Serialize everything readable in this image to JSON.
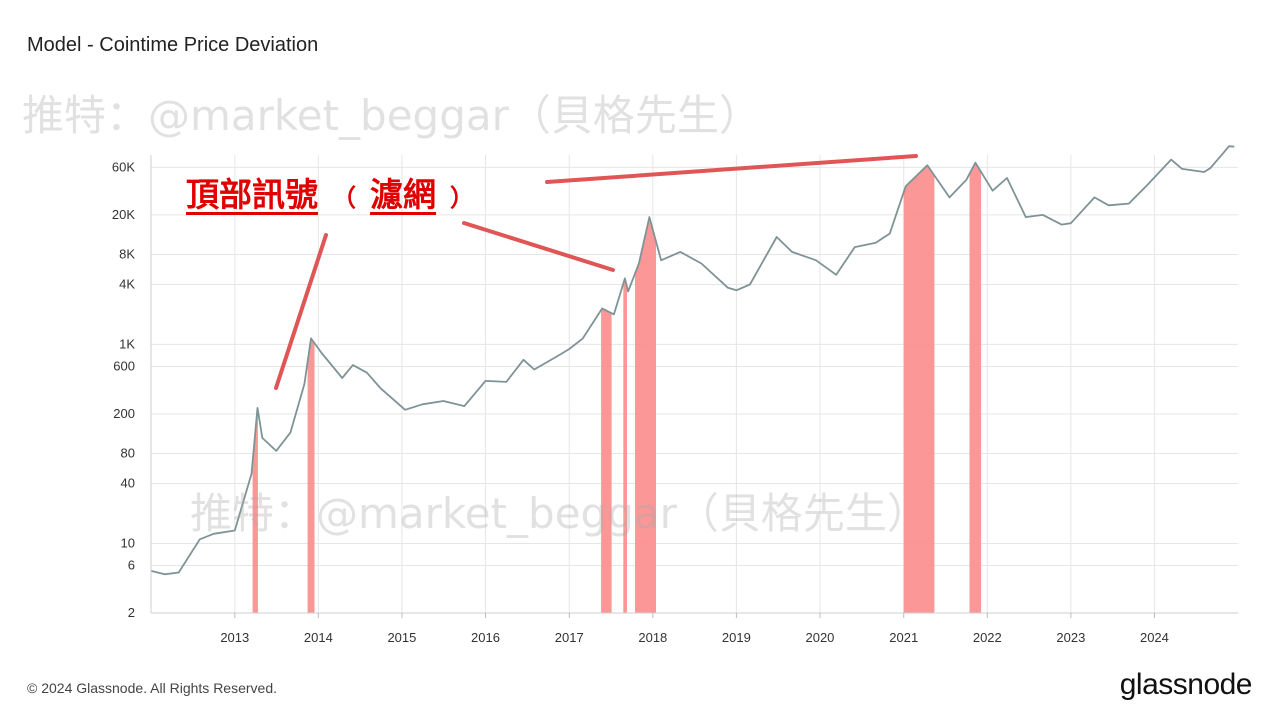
{
  "title": "Model - Cointime Price Deviation",
  "watermark": "推特：@market_beggar（貝格先生）",
  "annotation": {
    "part1": "頂部訊號",
    "open_paren": "（",
    "part2": "濾網",
    "close_paren": "）"
  },
  "footer": "© 2024 Glassnode. All Rights Reserved.",
  "brand": "glassnode",
  "colors": {
    "price_line": "#7f9396",
    "signal_band": "#fb8c8c",
    "annotation": "#e00000",
    "arrow": "#e05555",
    "grid": "#e6e6e6"
  },
  "chart_data": {
    "type": "line",
    "yscale": "log",
    "ylim": [
      2,
      80000
    ],
    "xlim": [
      "2012-01-01",
      "2024-12-31"
    ],
    "y_ticks": [
      {
        "value": 2,
        "label": "2"
      },
      {
        "value": 6,
        "label": "6"
      },
      {
        "value": 10,
        "label": "10"
      },
      {
        "value": 40,
        "label": "40"
      },
      {
        "value": 80,
        "label": "80"
      },
      {
        "value": 200,
        "label": "200"
      },
      {
        "value": 600,
        "label": "600"
      },
      {
        "value": 1000,
        "label": "1K"
      },
      {
        "value": 4000,
        "label": "4K"
      },
      {
        "value": 8000,
        "label": "8K"
      },
      {
        "value": 20000,
        "label": "20K"
      },
      {
        "value": 60000,
        "label": "60K"
      }
    ],
    "x_ticks": [
      "2013",
      "2014",
      "2015",
      "2016",
      "2017",
      "2018",
      "2019",
      "2020",
      "2021",
      "2022",
      "2023",
      "2024"
    ],
    "series": [
      {
        "type": "line",
        "x": [
          "2012-01-01",
          "2012-03-01",
          "2012-05-01",
          "2012-08-01",
          "2012-10-01",
          "2013-01-01",
          "2013-03-15",
          "2013-04-10",
          "2013-05-01",
          "2013-07-01",
          "2013-09-01",
          "2013-11-01",
          "2013-11-30",
          "2014-01-15",
          "2014-04-15",
          "2014-06-01",
          "2014-08-01",
          "2014-10-01",
          "2015-01-15",
          "2015-04-01",
          "2015-07-01",
          "2015-10-01",
          "2016-01-01",
          "2016-04-01",
          "2016-06-15",
          "2016-08-01",
          "2016-11-01",
          "2017-01-01",
          "2017-03-01",
          "2017-05-25",
          "2017-07-15",
          "2017-09-01",
          "2017-09-15",
          "2017-11-01",
          "2017-12-17",
          "2018-02-06",
          "2018-05-01",
          "2018-08-01",
          "2018-11-25",
          "2019-01-01",
          "2019-03-01",
          "2019-06-26",
          "2019-09-01",
          "2019-12-15",
          "2020-03-12",
          "2020-06-01",
          "2020-09-01",
          "2020-11-01",
          "2021-01-10",
          "2021-04-14",
          "2021-07-20",
          "2021-10-01",
          "2021-11-10",
          "2022-01-24",
          "2022-03-28",
          "2022-06-18",
          "2022-09-01",
          "2022-11-21",
          "2023-01-01",
          "2023-04-14",
          "2023-06-15",
          "2023-09-11",
          "2023-12-01",
          "2024-03-14",
          "2024-05-01",
          "2024-08-05",
          "2024-09-01",
          "2024-11-22",
          "2024-12-15"
        ],
        "y": [
          5.3,
          4.9,
          5.1,
          11,
          12.5,
          13.5,
          50,
          230,
          115,
          85,
          130,
          400,
          1150,
          820,
          460,
          620,
          520,
          360,
          220,
          250,
          270,
          240,
          430,
          420,
          700,
          560,
          740,
          900,
          1150,
          2300,
          2000,
          4600,
          3400,
          6500,
          19000,
          7000,
          8500,
          6500,
          3700,
          3500,
          4000,
          12000,
          8500,
          7000,
          5000,
          9500,
          10500,
          13000,
          39000,
          63000,
          30000,
          45000,
          67000,
          35000,
          47000,
          19000,
          20000,
          16000,
          16500,
          30000,
          25000,
          26000,
          40000,
          72000,
          58000,
          54000,
          59000,
          98000,
          97000
        ]
      }
    ],
    "signal_bands": [
      [
        "2013-03-20",
        "2013-04-12"
      ],
      [
        "2013-11-15",
        "2013-12-15"
      ],
      [
        "2017-05-20",
        "2017-07-05"
      ],
      [
        "2017-08-25",
        "2017-09-10"
      ],
      [
        "2017-10-15",
        "2018-01-15"
      ],
      [
        "2021-01-01",
        "2021-05-15"
      ],
      [
        "2021-10-15",
        "2021-12-05"
      ]
    ]
  }
}
